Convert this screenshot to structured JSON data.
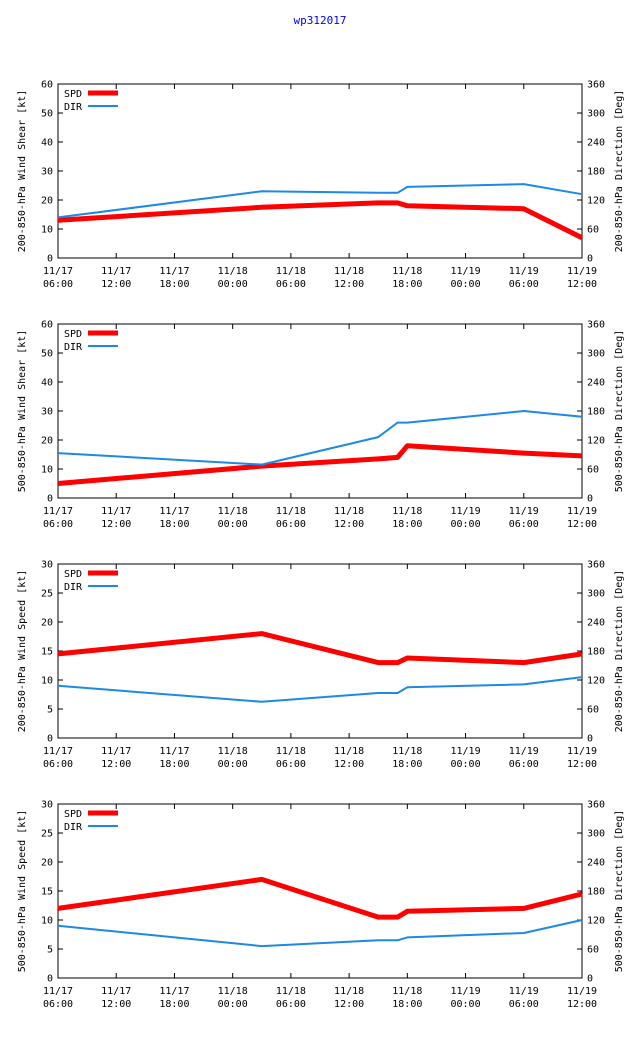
{
  "title": "wp312017",
  "x_tick_labels": [
    [
      "11/17",
      "06:00"
    ],
    [
      "11/17",
      "12:00"
    ],
    [
      "11/17",
      "18:00"
    ],
    [
      "11/18",
      "00:00"
    ],
    [
      "11/18",
      "06:00"
    ],
    [
      "11/18",
      "12:00"
    ],
    [
      "11/18",
      "18:00"
    ],
    [
      "11/19",
      "00:00"
    ],
    [
      "11/19",
      "06:00"
    ],
    [
      "11/19",
      "12:00"
    ]
  ],
  "legend": {
    "spd_label": "SPD",
    "dir_label": "DIR"
  },
  "colors": {
    "spd": "#ff0000",
    "dir": "#1e88e5",
    "axis": "#000000"
  },
  "chart_data": [
    {
      "type": "line",
      "ylabel_left": "200-850-hPa Wind Shear [kt]",
      "ylabel_right": "200-850-hPa Direction [Deg]",
      "ylim_left": [
        0,
        60
      ],
      "yticks_left": [
        0,
        10,
        20,
        30,
        40,
        50,
        60
      ],
      "ylim_right": [
        0,
        360
      ],
      "yticks_right": [
        0,
        60,
        120,
        180,
        240,
        300,
        360
      ],
      "xlim_hours": [
        0,
        54
      ],
      "series": [
        {
          "name": "SPD",
          "axis": "left",
          "x_hours": [
            0,
            21,
            33,
            35,
            36,
            48,
            54
          ],
          "values": [
            13,
            17.5,
            19,
            19,
            18,
            17,
            7
          ]
        },
        {
          "name": "DIR",
          "axis": "right",
          "x_hours": [
            0,
            21,
            33,
            35,
            36,
            48,
            54
          ],
          "values": [
            84,
            138,
            135,
            135,
            147,
            153,
            132
          ]
        }
      ]
    },
    {
      "type": "line",
      "ylabel_left": "500-850-hPa Wind Shear [kt]",
      "ylabel_right": "500-850-hPa Direction [Deg]",
      "ylim_left": [
        0,
        60
      ],
      "yticks_left": [
        0,
        10,
        20,
        30,
        40,
        50,
        60
      ],
      "ylim_right": [
        0,
        360
      ],
      "yticks_right": [
        0,
        60,
        120,
        180,
        240,
        300,
        360
      ],
      "xlim_hours": [
        0,
        54
      ],
      "series": [
        {
          "name": "SPD",
          "axis": "left",
          "x_hours": [
            0,
            21,
            33,
            35,
            36,
            48,
            54
          ],
          "values": [
            5,
            11,
            13.5,
            14,
            18,
            15.5,
            14.5
          ]
        },
        {
          "name": "DIR",
          "axis": "right",
          "x_hours": [
            0,
            21,
            33,
            35,
            36,
            48,
            54
          ],
          "values": [
            93,
            69,
            126,
            156,
            156,
            180,
            168
          ]
        }
      ]
    },
    {
      "type": "line",
      "ylabel_left": "200-850-hPa Wind Speed [kt]",
      "ylabel_right": "200-850-hPa Direction [Deg]",
      "ylim_left": [
        0,
        30
      ],
      "yticks_left": [
        0,
        5,
        10,
        15,
        20,
        25,
        30
      ],
      "ylim_right": [
        0,
        360
      ],
      "yticks_right": [
        0,
        60,
        120,
        180,
        240,
        300,
        360
      ],
      "xlim_hours": [
        0,
        54
      ],
      "series": [
        {
          "name": "SPD",
          "axis": "left",
          "x_hours": [
            0,
            21,
            33,
            35,
            36,
            48,
            54
          ],
          "values": [
            14.5,
            18,
            13,
            13,
            13.8,
            13,
            14.5
          ]
        },
        {
          "name": "DIR",
          "axis": "right",
          "x_hours": [
            0,
            21,
            33,
            35,
            36,
            48,
            54
          ],
          "values": [
            108,
            75,
            93,
            93,
            105,
            111,
            126
          ]
        }
      ]
    },
    {
      "type": "line",
      "ylabel_left": "500-850-hPa Wind Speed [kt]",
      "ylabel_right": "500-850-hPa Direction [Deg]",
      "ylim_left": [
        0,
        30
      ],
      "yticks_left": [
        0,
        5,
        10,
        15,
        20,
        25,
        30
      ],
      "ylim_right": [
        0,
        360
      ],
      "yticks_right": [
        0,
        60,
        120,
        180,
        240,
        300,
        360
      ],
      "xlim_hours": [
        0,
        54
      ],
      "series": [
        {
          "name": "SPD",
          "axis": "left",
          "x_hours": [
            0,
            21,
            33,
            35,
            36,
            48,
            54
          ],
          "values": [
            12,
            17,
            10.5,
            10.5,
            11.5,
            12,
            14.5
          ]
        },
        {
          "name": "DIR",
          "axis": "right",
          "x_hours": [
            0,
            21,
            33,
            35,
            36,
            48,
            54
          ],
          "values": [
            108,
            66,
            78,
            78,
            84,
            93,
            120
          ]
        }
      ]
    }
  ]
}
